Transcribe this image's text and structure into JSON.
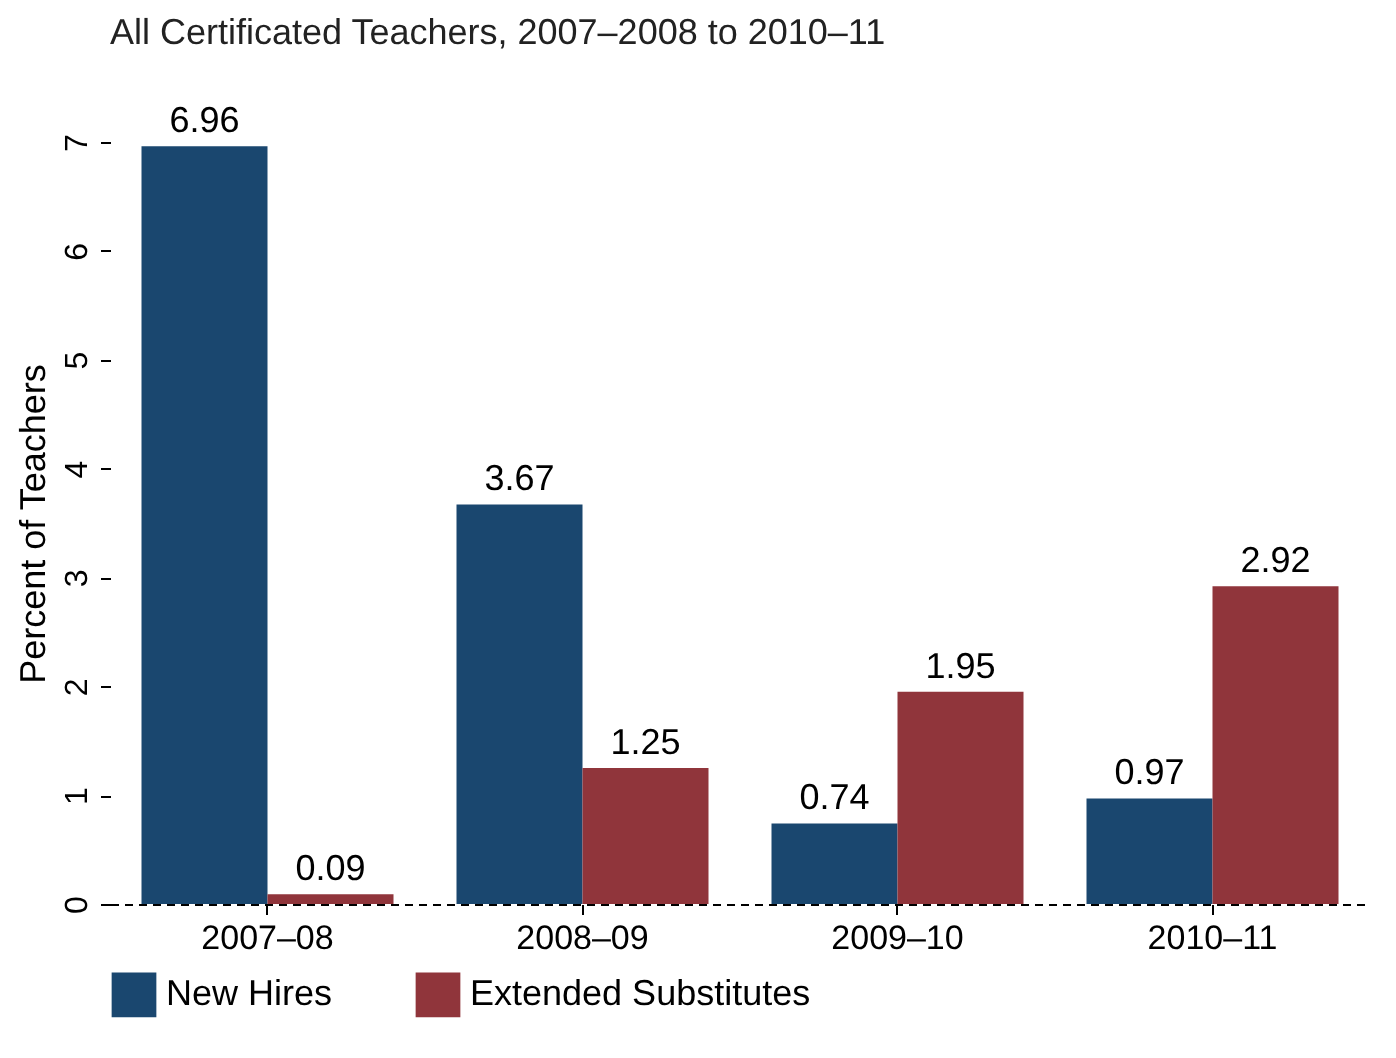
{
  "chart_data": {
    "type": "bar",
    "title": "All Certificated Teachers, 2007–2008 to 2010–11",
    "ylabel": "Percent of Teachers",
    "categories": [
      "2007–08",
      "2008–09",
      "2009–10",
      "2010–11"
    ],
    "series": [
      {
        "name": "New Hires",
        "color": "#1a476f",
        "values": [
          6.96,
          3.67,
          0.74,
          0.97
        ]
      },
      {
        "name": "Extended Substitutes",
        "color": "#90353b",
        "values": [
          0.09,
          1.25,
          1.95,
          2.92
        ]
      }
    ],
    "ylim": [
      0,
      7
    ],
    "yticks": [
      0,
      1,
      2,
      3,
      4,
      5,
      6,
      7
    ],
    "grid": false,
    "legend": "bottom",
    "data_labels": true
  }
}
